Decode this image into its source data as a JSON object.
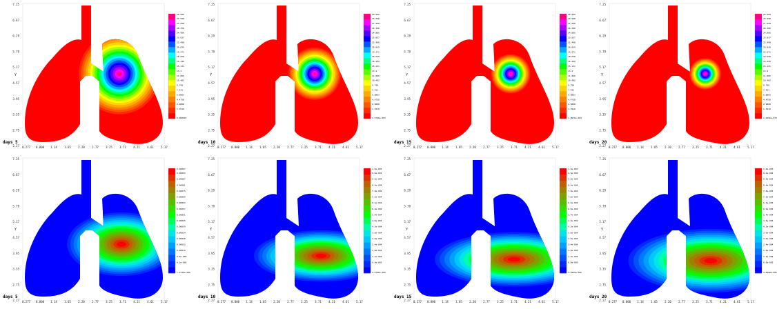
{
  "axes": {
    "x_ticks": [
      "0.277",
      "0.000",
      "1.14",
      "1.65",
      "2.20",
      "2.77",
      "3.25",
      "3.71",
      "4.21",
      "4.61",
      "5.17"
    ],
    "y_ticks": [
      "7.25",
      "6.67",
      "6.29",
      "5.79",
      "5.17",
      "4.57",
      "3.95",
      "3.35",
      "2.75",
      "2.27"
    ],
    "y_label": "Y"
  },
  "colormaps": {
    "rainbow": [
      "#ff0000",
      "#ff2a00",
      "#ff5500",
      "#ff8000",
      "#ffaa00",
      "#ffd400",
      "#ffff00",
      "#aaff00",
      "#55ff00",
      "#00ff00",
      "#00ff80",
      "#00ffff",
      "#00aaff",
      "#0055ff",
      "#0000ff",
      "#5500ff",
      "#aa00ff",
      "#ff00ff",
      "#ff0080"
    ],
    "diverging": [
      "#0000ff",
      "#0028ff",
      "#0050ff",
      "#0078ff",
      "#00a0ff",
      "#00c8ff",
      "#00e6e6",
      "#00ffaa",
      "#00ff55",
      "#00ff00",
      "#30e000",
      "#55c000",
      "#80a000",
      "#a08000",
      "#c06000",
      "#e03000",
      "#ff0000"
    ]
  },
  "panels": [
    {
      "day_label": "days  5",
      "type": "rainbow",
      "cx": 173,
      "cy": 107,
      "r": 62,
      "legend_top": "29.999",
      "legend_bottom": "0.000697",
      "legend": [
        "29.998",
        "27.998",
        "26.358",
        "24.989",
        "23.837",
        "22.498",
        "20.839",
        "19.271",
        "18.658",
        "16.449",
        "15.131",
        "13.4",
        "11.866",
        "10.482",
        "9.798",
        "7.421",
        "5.8863",
        "4.4758",
        "2.9868",
        "1.3910"
      ]
    },
    {
      "day_label": "days  10",
      "type": "rainbow",
      "cx": 456,
      "cy": 107,
      "r": 40,
      "legend_top": "29.999",
      "legend_bottom": "1.5796e-003",
      "legend": [
        "29.998",
        "27.998",
        "26.388",
        "24.885",
        "23.837",
        "22.498",
        "20.839",
        "19.271",
        "18.658",
        "16.449",
        "15.131",
        "13.4",
        "11.866",
        "10.482",
        "9.798",
        "7.421",
        "5.8863",
        "4.4758",
        "2.9868",
        "1.3910"
      ]
    },
    {
      "day_label": "days  15",
      "type": "rainbow",
      "cx": 740,
      "cy": 107,
      "r": 30,
      "legend_top": "29.999",
      "legend_bottom": "1.8976e-004",
      "legend": [
        "29.998",
        "27.998",
        "26.388",
        "24.885",
        "23.837",
        "22.498",
        "20.839",
        "19.271",
        "18.658",
        "16.449",
        "15.131",
        "13.4",
        "11.866",
        "10.482",
        "9.798",
        "7.421",
        "5.8863",
        "4.4758",
        "2.9868",
        "1.3910"
      ]
    },
    {
      "day_label": "days  20",
      "type": "rainbow",
      "cx": 1022,
      "cy": 107,
      "r": 24,
      "legend_top": "29.999",
      "legend_bottom": "1.0296e-070",
      "legend": [
        "29.998",
        "27.998",
        "26.388",
        "24.885",
        "23.837",
        "22.498",
        "20.839",
        "19.271",
        "18.658",
        "16.449",
        "15.131",
        "13.4",
        "11.866",
        "10.482",
        "9.798",
        "7.421",
        "5.8863",
        "4.4758",
        "2.9868",
        "1.3910"
      ]
    },
    {
      "day_label": "days  5",
      "type": "diverging",
      "cx": 176,
      "cy": 354,
      "rx": 34,
      "ry": 20,
      "legend_top": "0.00097",
      "legend_bottom": "7.5726e-006",
      "legend": [
        "0.00093",
        "0.00087",
        "0.00081",
        "0.00075",
        "0.00069",
        "0.00063",
        "0.00057",
        "0.00051",
        "0.00045",
        "0.00039",
        "0.00034",
        "0.00028",
        "0.00022",
        "0.00016",
        "9.8e-005",
        "4.2e-005"
      ]
    },
    {
      "day_label": "days  10",
      "type": "diverging",
      "cx": 465,
      "cy": 371,
      "rx": 42,
      "ry": 16,
      "legend_top": "1.0e-003",
      "legend_bottom": "2.6706e-006",
      "legend": [
        "9.6e-004",
        "9.0e-004",
        "8.4e-004",
        "7.8e-004",
        "7.2e-004",
        "6.6e-004",
        "6.0e-004",
        "5.4e-004",
        "4.8e-004",
        "4.2e-004",
        "3.6e-004",
        "3.0e-004",
        "2.4e-004",
        "1.8e-004",
        "1.2e-004",
        "6.0e-005"
      ]
    },
    {
      "day_label": "days  15",
      "type": "diverging",
      "cx": 745,
      "cy": 376,
      "rx": 50,
      "ry": 17,
      "legend_top": "1.0e-003",
      "legend_bottom": "3.6969e-006",
      "legend": [
        "9.6e-004",
        "9.0e-004",
        "8.4e-004",
        "7.8e-004",
        "7.2e-004",
        "6.6e-004",
        "6.0e-004",
        "5.4e-004",
        "4.8e-004",
        "4.2e-004",
        "3.6e-004",
        "3.0e-004",
        "2.4e-004",
        "1.8e-004",
        "1.2e-004",
        "6.0e-005"
      ]
    },
    {
      "day_label": "days  20",
      "type": "diverging",
      "cx": 1030,
      "cy": 378,
      "rx": 52,
      "ry": 20,
      "legend_top": "1.0e-003",
      "legend_bottom": "4.0098e-006",
      "legend": [
        "9.6e-004",
        "9.0e-004",
        "8.4e-004",
        "7.8e-004",
        "7.2e-004",
        "6.6e-004",
        "6.0e-004",
        "5.4e-004",
        "4.8e-004",
        "4.2e-004",
        "3.6e-004",
        "3.0e-004",
        "2.4e-004",
        "1.8e-004",
        "1.2e-004",
        "6.0e-005"
      ]
    }
  ]
}
